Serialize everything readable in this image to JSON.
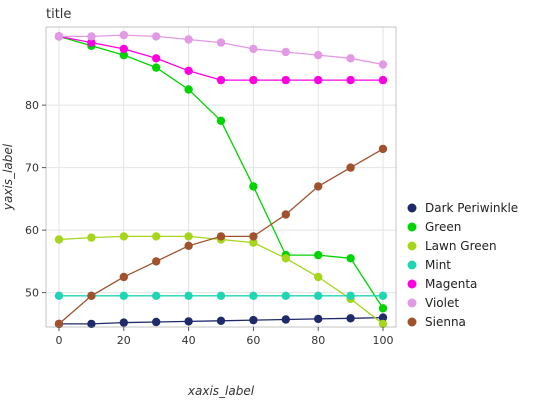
{
  "chart_data": {
    "type": "line",
    "title": "title",
    "xlabel": "xaxis_label",
    "ylabel": "yaxis_label",
    "x": [
      0,
      10,
      20,
      30,
      40,
      50,
      60,
      70,
      80,
      90,
      100
    ],
    "x_ticks": [
      0,
      20,
      40,
      60,
      80,
      100
    ],
    "y_ticks": [
      50,
      60,
      70,
      80
    ],
    "xlim": [
      -4,
      104
    ],
    "ylim": [
      44.5,
      92.5
    ],
    "grid": true,
    "legend_position": "right",
    "series": [
      {
        "name": "Dark Periwinkle",
        "color": "#1f2a6b",
        "values": [
          45.0,
          45.0,
          45.2,
          45.3,
          45.4,
          45.5,
          45.6,
          45.7,
          45.8,
          45.9,
          46.0
        ]
      },
      {
        "name": "Green",
        "color": "#00d400",
        "values": [
          91.0,
          89.5,
          88.0,
          86.0,
          82.5,
          77.5,
          67.0,
          56.0,
          56.0,
          55.5,
          47.5
        ]
      },
      {
        "name": "Lawn Green",
        "color": "#a5d61c",
        "values": [
          58.5,
          58.8,
          59.0,
          59.0,
          59.0,
          58.5,
          58.0,
          55.5,
          52.5,
          49.0,
          45.0
        ]
      },
      {
        "name": "Mint",
        "color": "#1fd6b4",
        "values": [
          49.5,
          49.5,
          49.5,
          49.5,
          49.5,
          49.5,
          49.5,
          49.5,
          49.5,
          49.5,
          49.5
        ]
      },
      {
        "name": "Magenta",
        "color": "#ff00e0",
        "values": [
          91.0,
          90.0,
          89.0,
          87.5,
          85.5,
          84.0,
          84.0,
          84.0,
          84.0,
          84.0,
          84.0
        ]
      },
      {
        "name": "Violet",
        "color": "#e29ae6",
        "values": [
          91.0,
          91.0,
          91.2,
          91.0,
          90.5,
          90.0,
          89.0,
          88.5,
          88.0,
          87.5,
          86.5
        ]
      },
      {
        "name": "Sienna",
        "color": "#a0522d",
        "values": [
          45.0,
          49.5,
          52.5,
          55.0,
          57.5,
          59.0,
          59.0,
          62.5,
          67.0,
          70.0,
          73.0
        ]
      }
    ]
  }
}
